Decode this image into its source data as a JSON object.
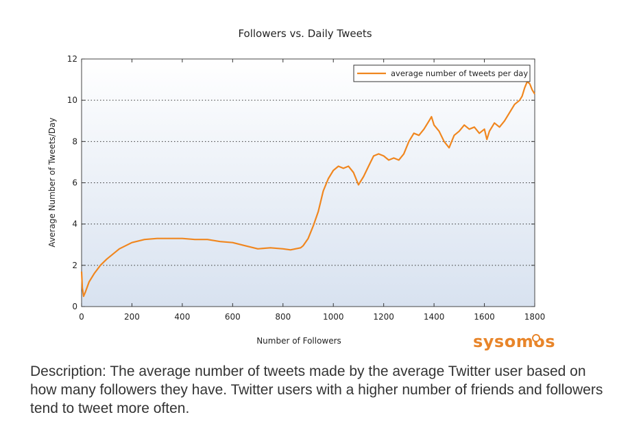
{
  "chart_data": {
    "type": "line",
    "title": "Followers vs. Daily Tweets",
    "xlabel": "Number of Followers",
    "ylabel": "Average Number of Tweets/Day",
    "xlim": [
      0,
      1800
    ],
    "ylim": [
      0,
      12
    ],
    "xticks": [
      0,
      200,
      400,
      600,
      800,
      1000,
      1200,
      1400,
      1600,
      1800
    ],
    "yticks": [
      0,
      2,
      4,
      6,
      8,
      10,
      12
    ],
    "grid": "horizontal dotted",
    "legend_position": "top-right",
    "series": [
      {
        "name": "average number of tweets per day",
        "color": "#f0861e",
        "x": [
          0,
          3,
          8,
          15,
          30,
          50,
          75,
          100,
          150,
          200,
          250,
          300,
          350,
          400,
          450,
          500,
          550,
          600,
          650,
          700,
          750,
          800,
          830,
          850,
          870,
          880,
          900,
          920,
          940,
          960,
          980,
          1000,
          1020,
          1040,
          1060,
          1080,
          1100,
          1120,
          1140,
          1160,
          1180,
          1200,
          1220,
          1240,
          1260,
          1280,
          1300,
          1320,
          1340,
          1360,
          1380,
          1390,
          1400,
          1420,
          1440,
          1460,
          1470,
          1480,
          1500,
          1520,
          1540,
          1560,
          1580,
          1600,
          1610,
          1620,
          1640,
          1660,
          1680,
          1700,
          1720,
          1740,
          1750,
          1760,
          1770,
          1780,
          1790,
          1800
        ],
        "y": [
          1.7,
          0.9,
          0.5,
          0.7,
          1.2,
          1.6,
          2.0,
          2.3,
          2.8,
          3.1,
          3.25,
          3.3,
          3.3,
          3.3,
          3.25,
          3.25,
          3.15,
          3.1,
          2.95,
          2.8,
          2.85,
          2.8,
          2.75,
          2.8,
          2.85,
          2.95,
          3.3,
          3.9,
          4.6,
          5.6,
          6.2,
          6.6,
          6.8,
          6.7,
          6.8,
          6.5,
          5.9,
          6.3,
          6.8,
          7.3,
          7.4,
          7.3,
          7.1,
          7.2,
          7.1,
          7.4,
          8.0,
          8.4,
          8.3,
          8.6,
          9.0,
          9.2,
          8.8,
          8.5,
          8.0,
          7.7,
          8.0,
          8.3,
          8.5,
          8.8,
          8.6,
          8.7,
          8.4,
          8.6,
          8.1,
          8.5,
          8.9,
          8.7,
          9.0,
          9.4,
          9.8,
          10.0,
          10.2,
          10.6,
          10.9,
          10.8,
          10.5,
          10.3
        ]
      }
    ]
  },
  "brand": "sysomos",
  "description": "Description: The average number of tweets made by the average Twitter user based on how many followers they have. Twitter users with a higher number of friends and followers tend to tweet more often."
}
